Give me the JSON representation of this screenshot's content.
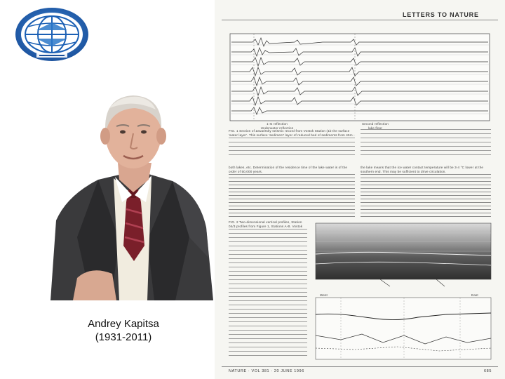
{
  "caption": {
    "name": "Andrey Kapitsa",
    "years": "(1931-2011)"
  },
  "article": {
    "journal_header": "LETTERS TO NATURE",
    "fig1_caption_start": "FIG. 1 Section of Zavaritsky seismic record from Vostok Station (1b the surface 'water layer'. This surface 'sediment' layer of reduced bed of sediments from 45m - 2.5 m depth to a potential 100m from the explosion. It occurs at about from 1.85 to 2.5 seconds after the explosion at depth 1.5 km.",
    "fig2_caption_start": "FIG. 2 Two-dimensional vertical profiles, Station 04/3 profiles from Figure 1, Stations A-B. Vostok water.",
    "body_start": "both lakes, etc. Determination of the residence time of the lake water is of the order of 50,000 years.",
    "body_right_start": "the lake means that the ice water contact temperature will be 3-4 °C lower at the southern end. This may be sufficient to drive circulation.",
    "fig1_label_left": "1-st reflection\nUnderwater reflection",
    "fig1_label_right": "Second reflection\nlake floor",
    "fig2_label_west": "West",
    "fig2_label_east": "East",
    "footer": "NATURE · VOL 381 · 20 JUNE 1996",
    "page_number": "685"
  }
}
